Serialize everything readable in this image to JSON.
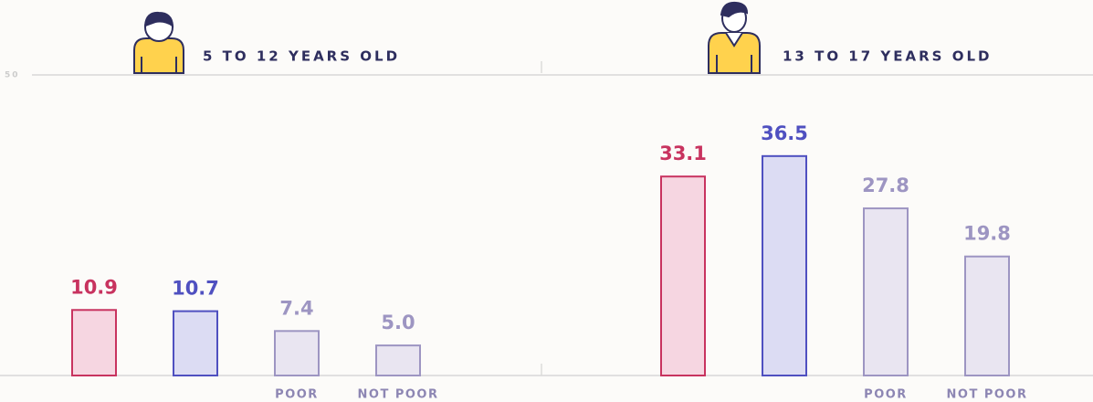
{
  "chart_data": [
    {
      "type": "bar",
      "title": "5 TO 12 YEARS OLD",
      "categories": [
        null,
        null,
        "POOR",
        "NOT POOR"
      ],
      "values": [
        10.9,
        10.7,
        7.4,
        5.0
      ],
      "value_labels": [
        "10.9",
        "10.7",
        "7.4",
        "5.0"
      ],
      "colors": [
        "#f6d6e1",
        "#dcdcf3",
        "#e9e5f1",
        "#e9e5f1"
      ],
      "edge_colors": [
        "#c8335f",
        "#4f50c0",
        "#9d95c2",
        "#9d95c2"
      ],
      "ylim": [
        0,
        50
      ],
      "yticks": [
        50
      ]
    },
    {
      "type": "bar",
      "title": "13 TO 17 YEARS OLD",
      "categories": [
        null,
        null,
        "POOR",
        "NOT POOR"
      ],
      "values": [
        33.1,
        36.5,
        27.8,
        19.8
      ],
      "value_labels": [
        "33.1",
        "36.5",
        "27.8",
        "19.8"
      ],
      "colors": [
        "#f6d6e1",
        "#dcdcf3",
        "#e9e5f1",
        "#e9e5f1"
      ],
      "edge_colors": [
        "#c8335f",
        "#4f50c0",
        "#9d95c2",
        "#9d95c2"
      ],
      "ylim": [
        0,
        50
      ]
    }
  ]
}
